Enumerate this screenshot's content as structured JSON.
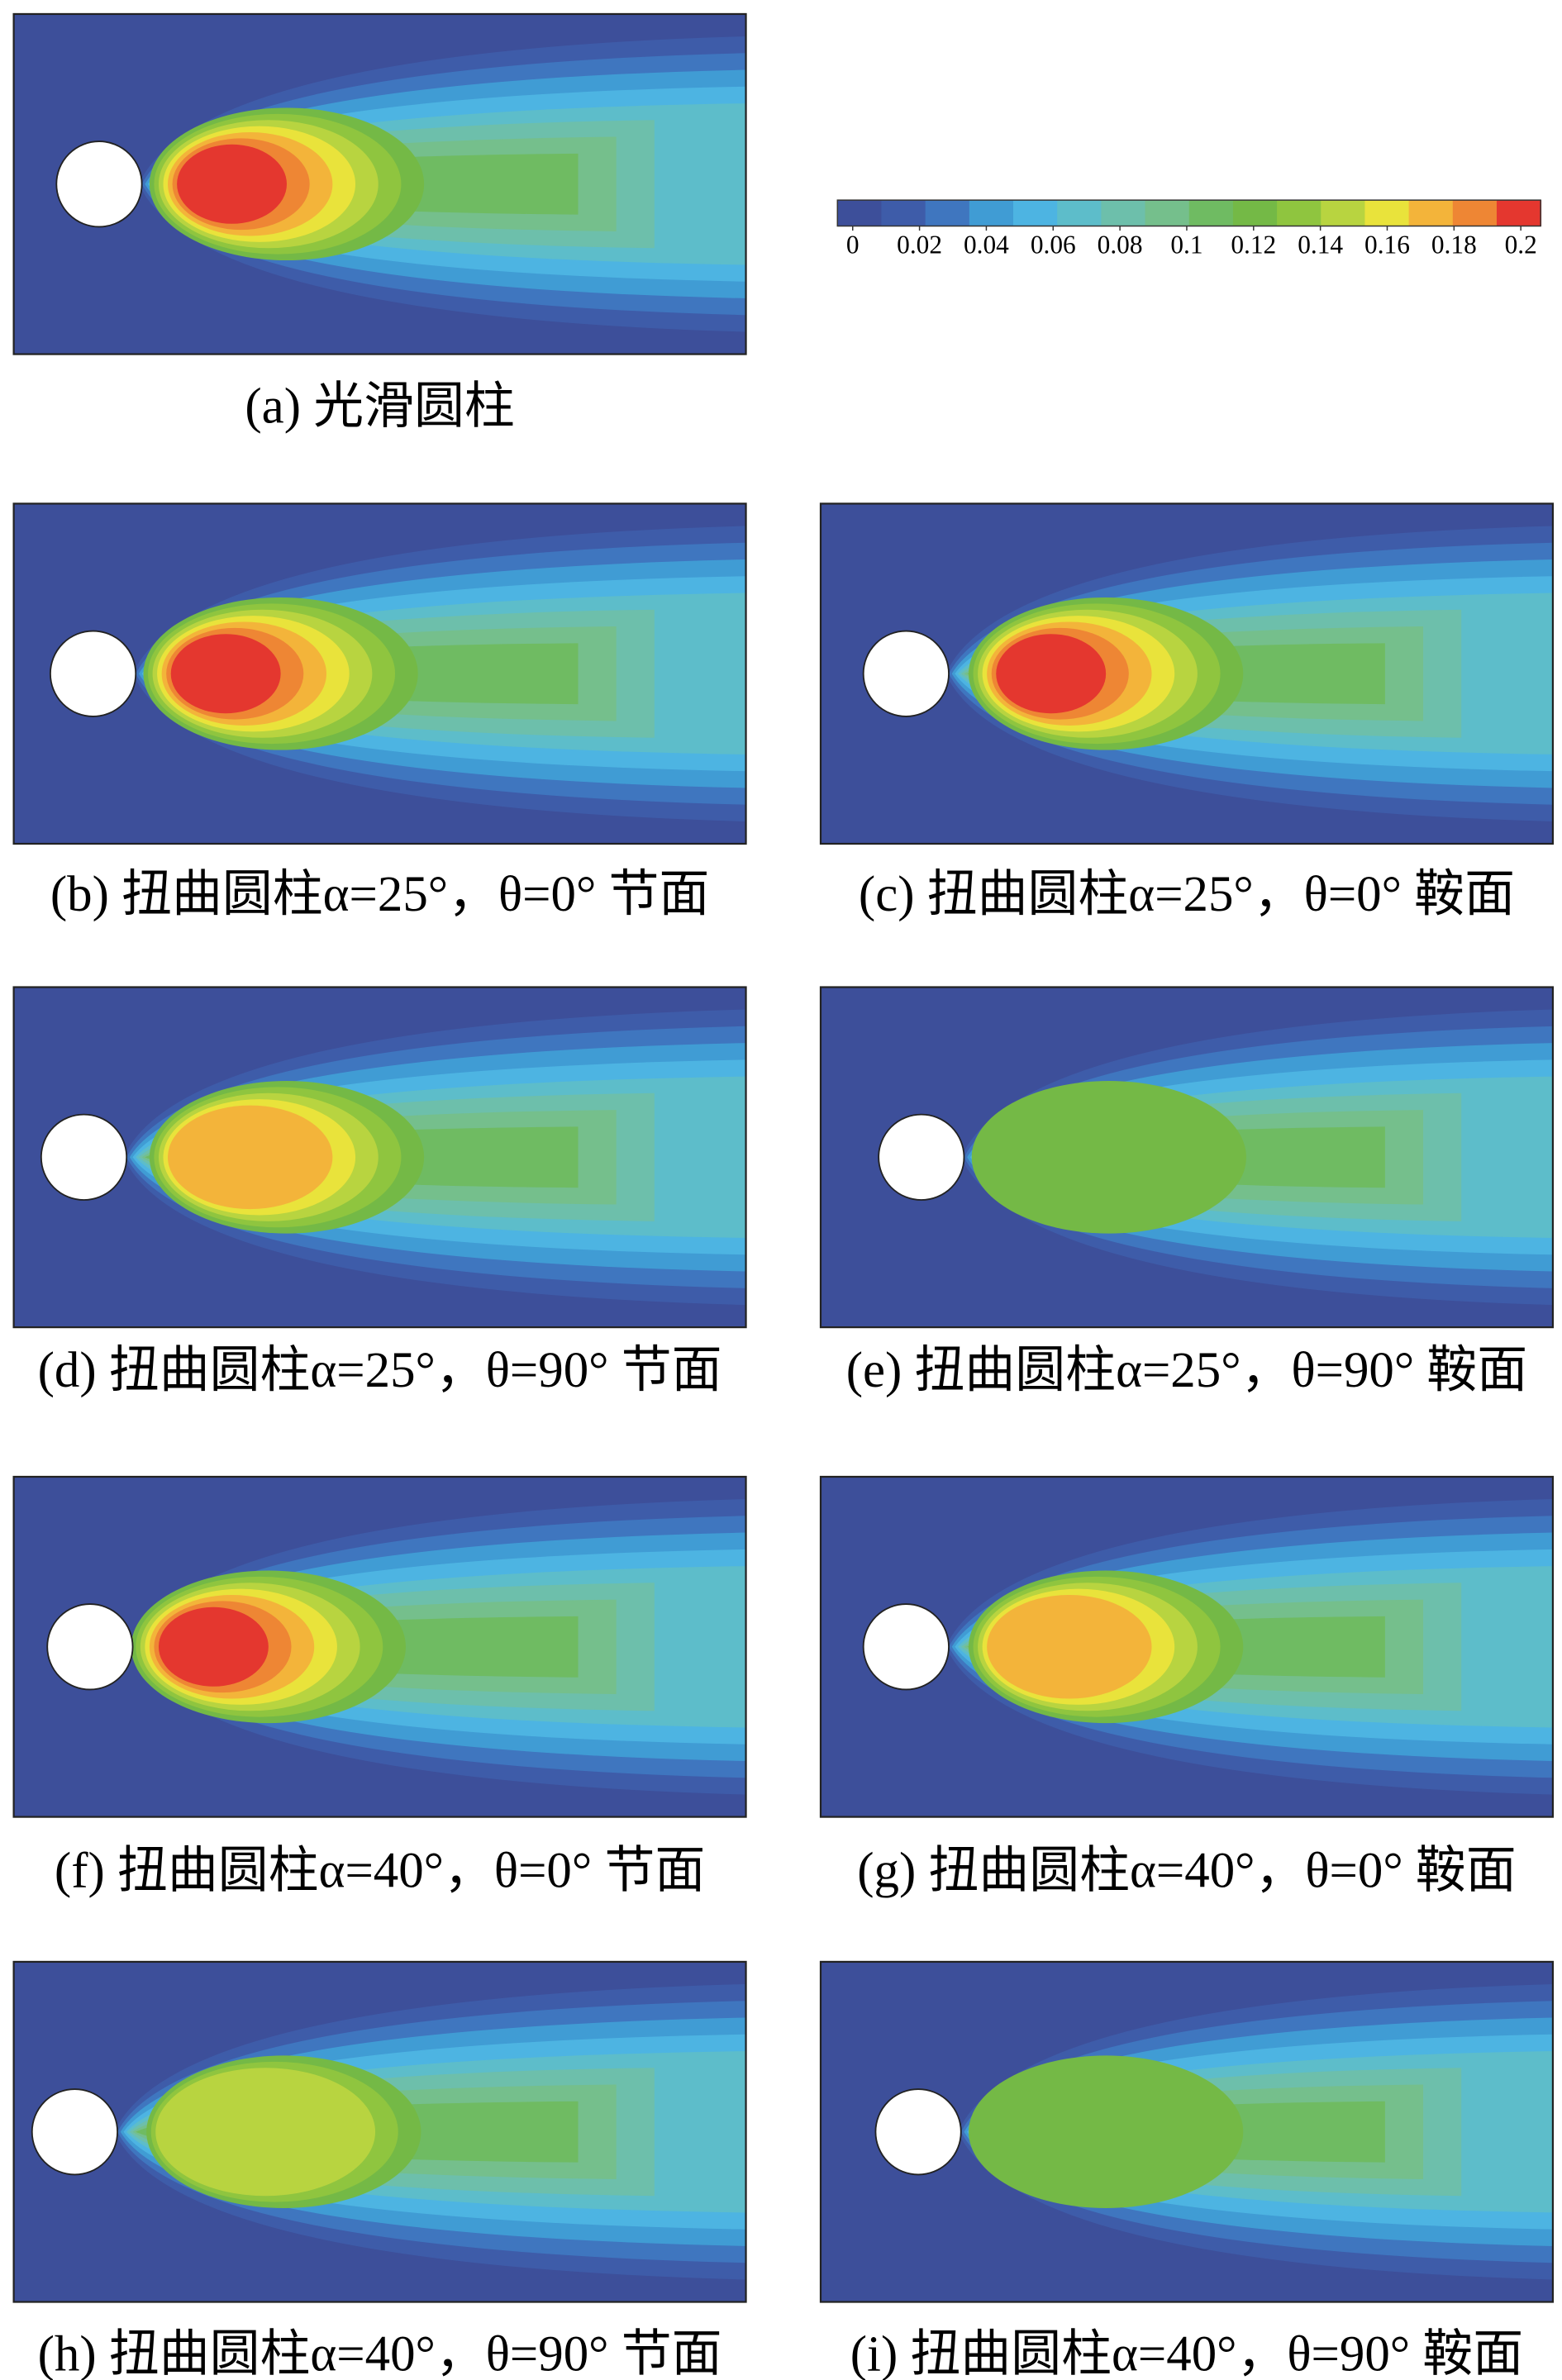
{
  "colorbar": {
    "ticks": [
      0,
      0.02,
      0.04,
      0.06,
      0.08,
      0.1,
      0.12,
      0.14,
      0.16,
      0.18,
      0.2
    ],
    "colors": [
      "#3d4f9a",
      "#3e5ca9",
      "#3f76bf",
      "#409cd4",
      "#4db4e2",
      "#5dbdca",
      "#6dbfab",
      "#75bf8c",
      "#6fbb62",
      "#74b946",
      "#8fc53f",
      "#b8d440",
      "#e9e33b",
      "#f3b43a",
      "#ee8634",
      "#e4372f"
    ]
  },
  "panels": [
    {
      "caption": "(a) 光滑圆柱"
    },
    {
      "caption": "(b) 扭曲圆柱α=25°，θ=0° 节面"
    },
    {
      "caption": "(c) 扭曲圆柱α=25°，θ=0° 鞍面"
    },
    {
      "caption": "(d) 扭曲圆柱α=25°，θ=90° 节面"
    },
    {
      "caption": "(e) 扭曲圆柱α=25°，θ=90° 鞍面"
    },
    {
      "caption": "(f) 扭曲圆柱α=40°，θ=0° 节面"
    },
    {
      "caption": "(g) 扭曲圆柱α=40°，θ=0° 鞍面"
    },
    {
      "caption": "(h) 扭曲圆柱α=40°，θ=90° 节面"
    },
    {
      "caption": "(i) 扭曲圆柱α=40°，θ=90° 鞍面"
    }
  ]
}
